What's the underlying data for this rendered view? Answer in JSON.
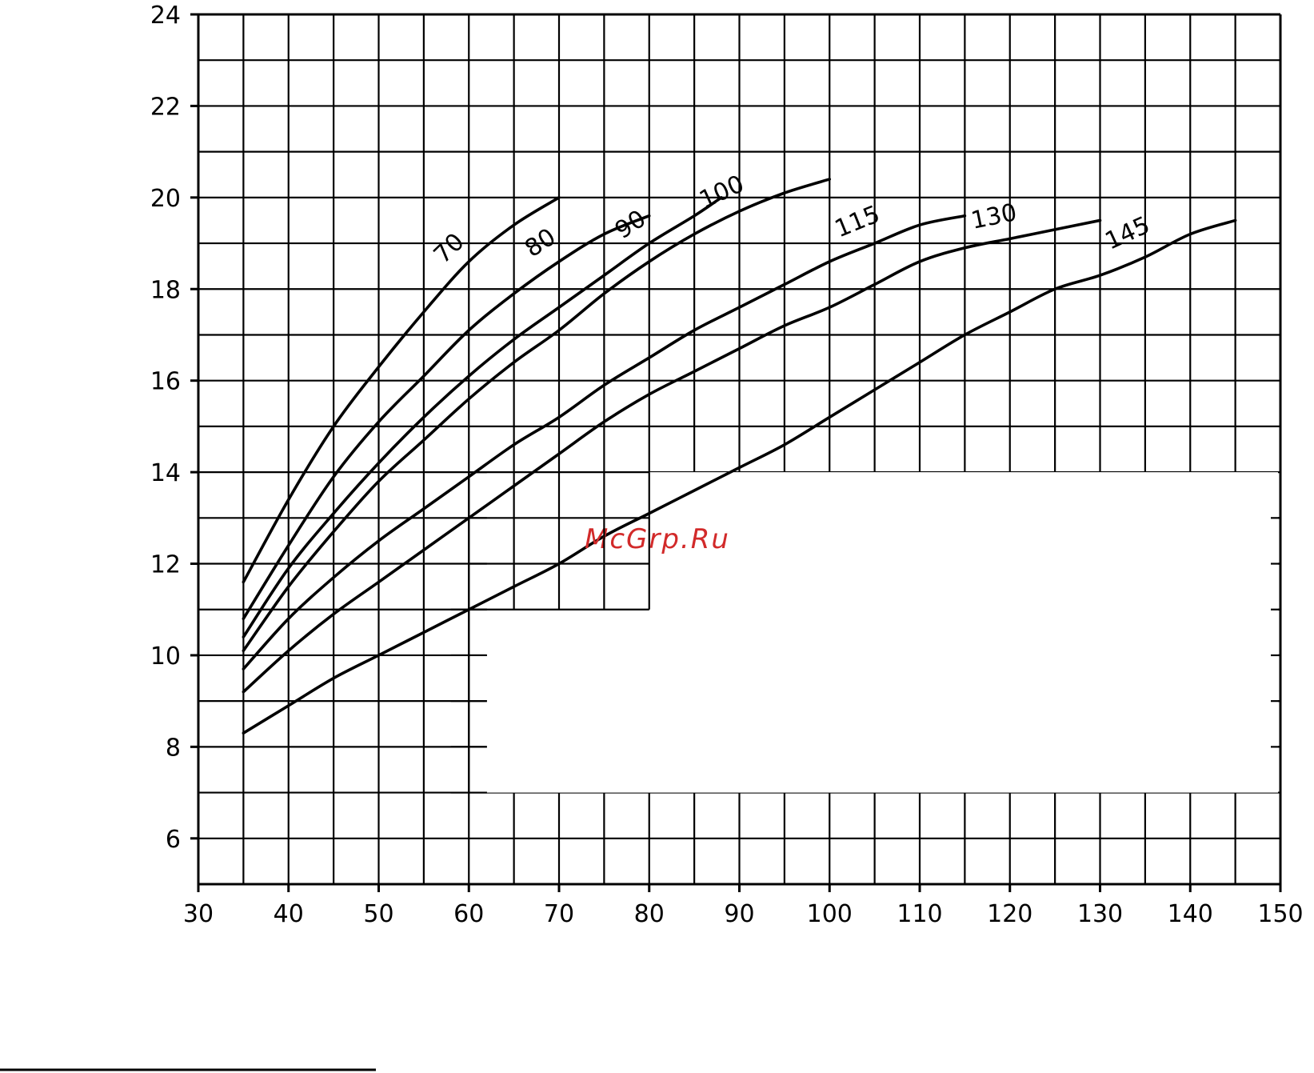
{
  "watermark": "McGrp.Ru",
  "chart_data": {
    "type": "line",
    "title": "",
    "xlabel": "",
    "ylabel": "",
    "xlim": [
      30,
      150
    ],
    "ylim": [
      5,
      24
    ],
    "x_ticks": [
      30,
      40,
      50,
      60,
      70,
      80,
      90,
      100,
      110,
      120,
      130,
      140,
      150
    ],
    "y_ticks": [
      6,
      8,
      10,
      12,
      14,
      16,
      18,
      20,
      22,
      24
    ],
    "grid": true,
    "series": [
      {
        "name": "70",
        "x": [
          35,
          40,
          45,
          50,
          55,
          60,
          65,
          70
        ],
        "y": [
          11.6,
          13.4,
          15.0,
          16.3,
          17.5,
          18.6,
          19.4,
          20.0
        ]
      },
      {
        "name": "80",
        "x": [
          35,
          40,
          45,
          50,
          55,
          60,
          65,
          70,
          75,
          80
        ],
        "y": [
          10.8,
          12.4,
          13.9,
          15.1,
          16.1,
          17.1,
          17.9,
          18.6,
          19.2,
          19.6
        ]
      },
      {
        "name": "90",
        "x": [
          35,
          40,
          45,
          50,
          55,
          60,
          65,
          70,
          75,
          80,
          85,
          88
        ],
        "y": [
          10.4,
          11.9,
          13.1,
          14.2,
          15.2,
          16.1,
          16.9,
          17.6,
          18.3,
          19.0,
          19.6,
          20.0
        ]
      },
      {
        "name": "100",
        "x": [
          35,
          40,
          45,
          50,
          55,
          60,
          65,
          70,
          75,
          80,
          85,
          90,
          95,
          100
        ],
        "y": [
          10.1,
          11.5,
          12.7,
          13.8,
          14.7,
          15.6,
          16.4,
          17.1,
          17.9,
          18.6,
          19.2,
          19.7,
          20.1,
          20.4
        ]
      },
      {
        "name": "115",
        "x": [
          35,
          40,
          45,
          50,
          55,
          60,
          65,
          70,
          75,
          80,
          85,
          90,
          95,
          100,
          105,
          110,
          115
        ],
        "y": [
          9.7,
          10.8,
          11.7,
          12.5,
          13.2,
          13.9,
          14.6,
          15.2,
          15.9,
          16.5,
          17.1,
          17.6,
          18.1,
          18.6,
          19.0,
          19.4,
          19.6
        ]
      },
      {
        "name": "130",
        "x": [
          35,
          40,
          45,
          50,
          55,
          60,
          65,
          70,
          75,
          80,
          85,
          90,
          95,
          100,
          105,
          110,
          115,
          120,
          125,
          130
        ],
        "y": [
          9.2,
          10.1,
          10.9,
          11.6,
          12.3,
          13.0,
          13.7,
          14.4,
          15.1,
          15.7,
          16.2,
          16.7,
          17.2,
          17.6,
          18.1,
          18.6,
          18.9,
          19.1,
          19.3,
          19.5
        ]
      },
      {
        "name": "145",
        "x": [
          35,
          40,
          45,
          50,
          55,
          60,
          65,
          70,
          75,
          80,
          85,
          90,
          95,
          100,
          105,
          110,
          115,
          120,
          125,
          130,
          135,
          140,
          145
        ],
        "y": [
          8.3,
          8.9,
          9.5,
          10.0,
          10.5,
          11.0,
          11.5,
          12.0,
          12.6,
          13.1,
          13.6,
          14.1,
          14.6,
          15.2,
          15.8,
          16.4,
          17.0,
          17.5,
          18.0,
          18.3,
          18.7,
          19.2,
          19.5
        ]
      }
    ]
  }
}
